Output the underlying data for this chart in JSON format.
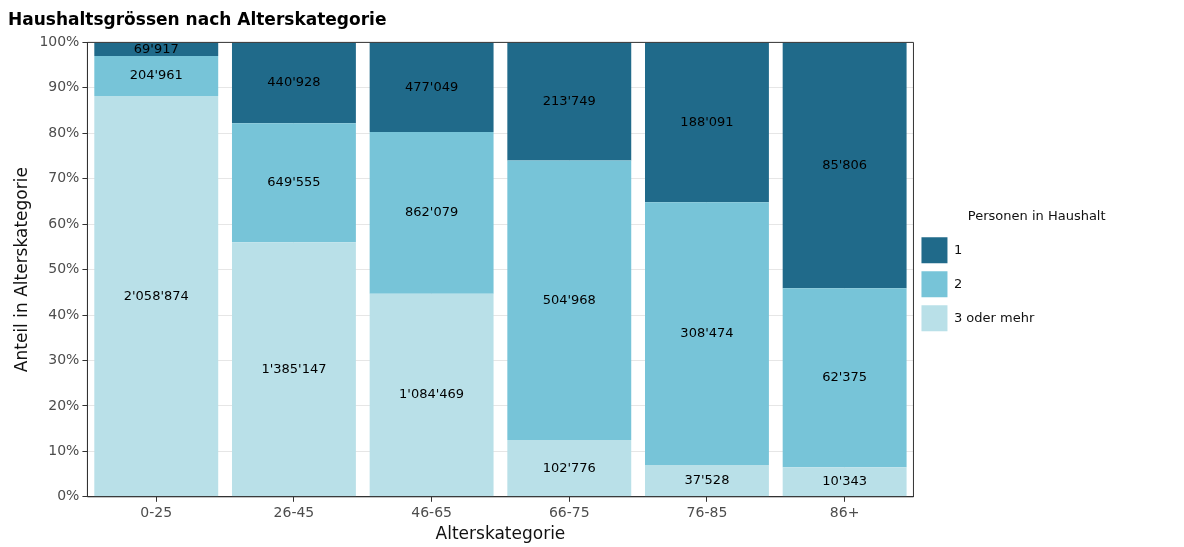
{
  "chart_data": {
    "type": "bar",
    "title": "Haushaltsgrössen nach Alterskategorie",
    "xlabel": "Alterskategorie",
    "ylabel": "Anteil in Alterskategorie",
    "legend_title": "Personen in Haushalt",
    "categories": [
      "0-25",
      "26-45",
      "46-65",
      "66-75",
      "76-85",
      "86+"
    ],
    "stacked": true,
    "ylim": [
      0,
      100
    ],
    "yticks": [
      {
        "value": 0,
        "label": "0%"
      },
      {
        "value": 10,
        "label": "10%"
      },
      {
        "value": 20,
        "label": "20%"
      },
      {
        "value": 30,
        "label": "30%"
      },
      {
        "value": 40,
        "label": "40%"
      },
      {
        "value": 50,
        "label": "50%"
      },
      {
        "value": 60,
        "label": "60%"
      },
      {
        "value": 70,
        "label": "70%"
      },
      {
        "value": 80,
        "label": "80%"
      },
      {
        "value": 90,
        "label": "90%"
      },
      {
        "value": 100,
        "label": "100%"
      }
    ],
    "series": [
      {
        "name": "3 oder mehr",
        "color": "#b9e0e8",
        "values": [
          88.2,
          56.0,
          44.7,
          12.5,
          7.0,
          6.5
        ]
      },
      {
        "name": "2",
        "color": "#77c4d8",
        "values": [
          8.8,
          26.2,
          35.6,
          61.5,
          57.8,
          39.4
        ]
      },
      {
        "name": "1",
        "color": "#206a8a",
        "values": [
          3.0,
          17.8,
          19.7,
          26.0,
          35.2,
          54.1
        ]
      }
    ],
    "annotations": [
      "2'058'874",
      "204'961",
      "69'917",
      "1'385'147",
      "649'555",
      "440'928",
      "1'084'469",
      "862'079",
      "477'049",
      "102'776",
      "504'968",
      "213'749",
      "37'528",
      "308'474",
      "188'091",
      "10'343",
      "62'375",
      "85'806"
    ],
    "grid": true,
    "legend": "right"
  }
}
